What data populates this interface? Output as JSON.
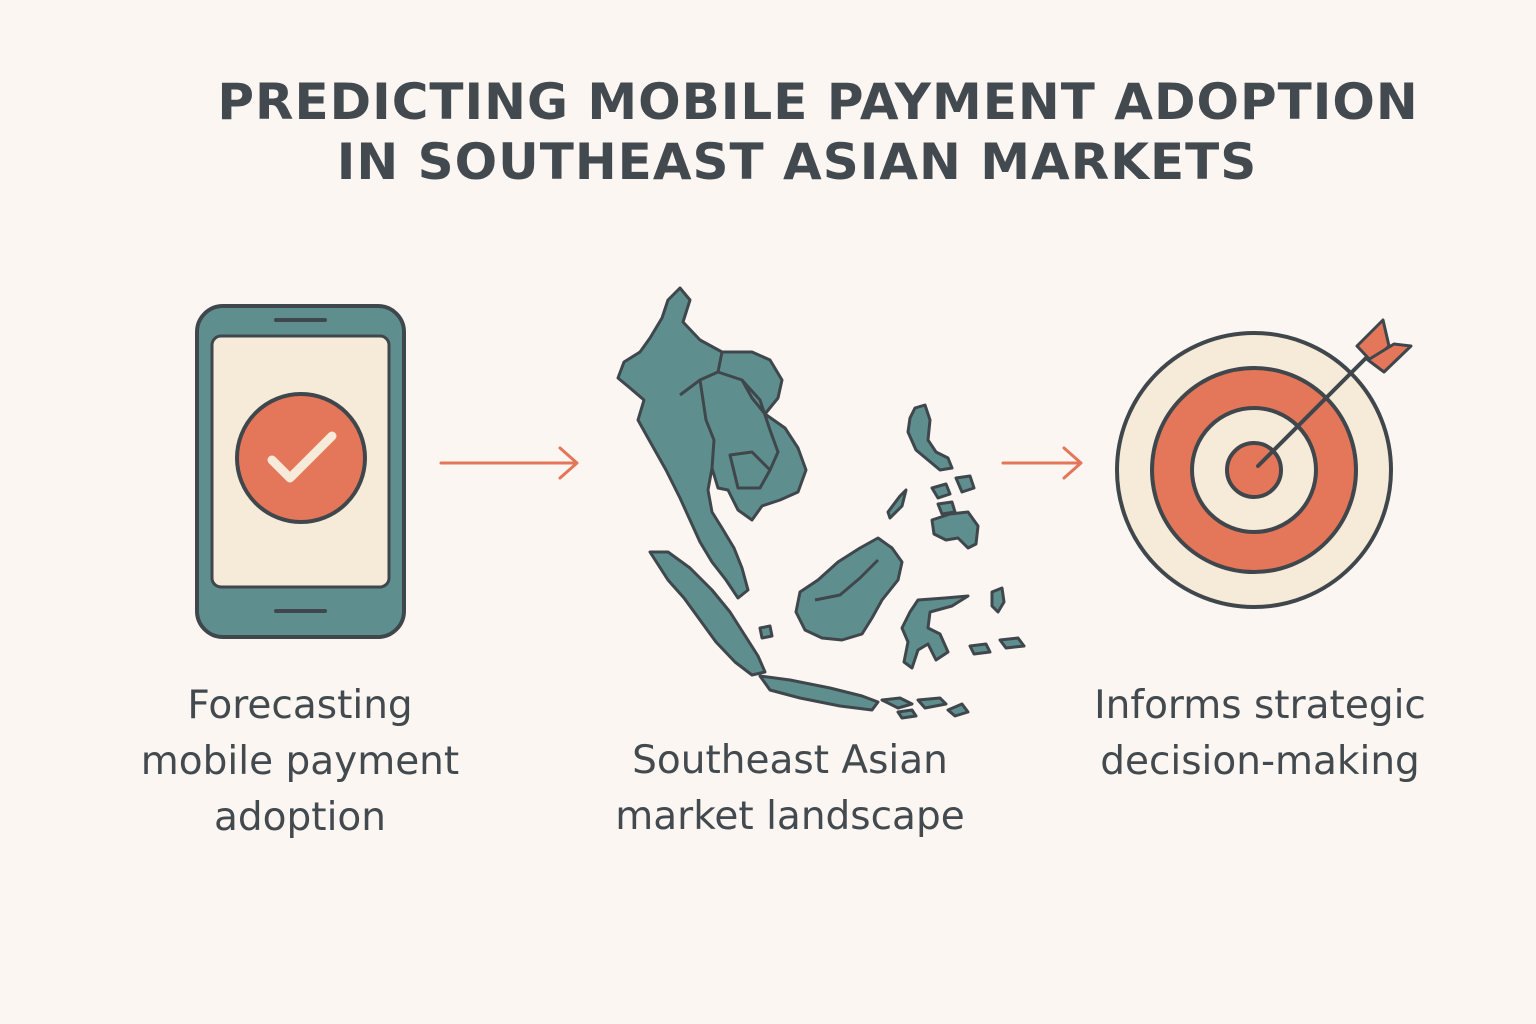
{
  "header": {
    "title_line1": "PREDICTING MOBILE PAYMENT ADOPTION",
    "title_line2": "IN SOUTHEAST ASIAN MARKETS"
  },
  "steps": [
    {
      "caption_lines": [
        "Forecasting",
        "mobile payment",
        "adoption"
      ],
      "icon": "smartphone-checkmark-icon"
    },
    {
      "caption_lines": [
        "Southeast Asian",
        "market landscape"
      ],
      "icon": "southeast-asia-map-icon"
    },
    {
      "caption_lines": [
        "Informs strategic",
        "decision-making"
      ],
      "icon": "target-arrow-icon"
    }
  ],
  "colors": {
    "background": "#fbf6f1",
    "teal": "#5e8f8e",
    "coral": "#e4765a",
    "cream": "#f6ead8",
    "outline": "#3f474c",
    "text": "#434a4f"
  }
}
